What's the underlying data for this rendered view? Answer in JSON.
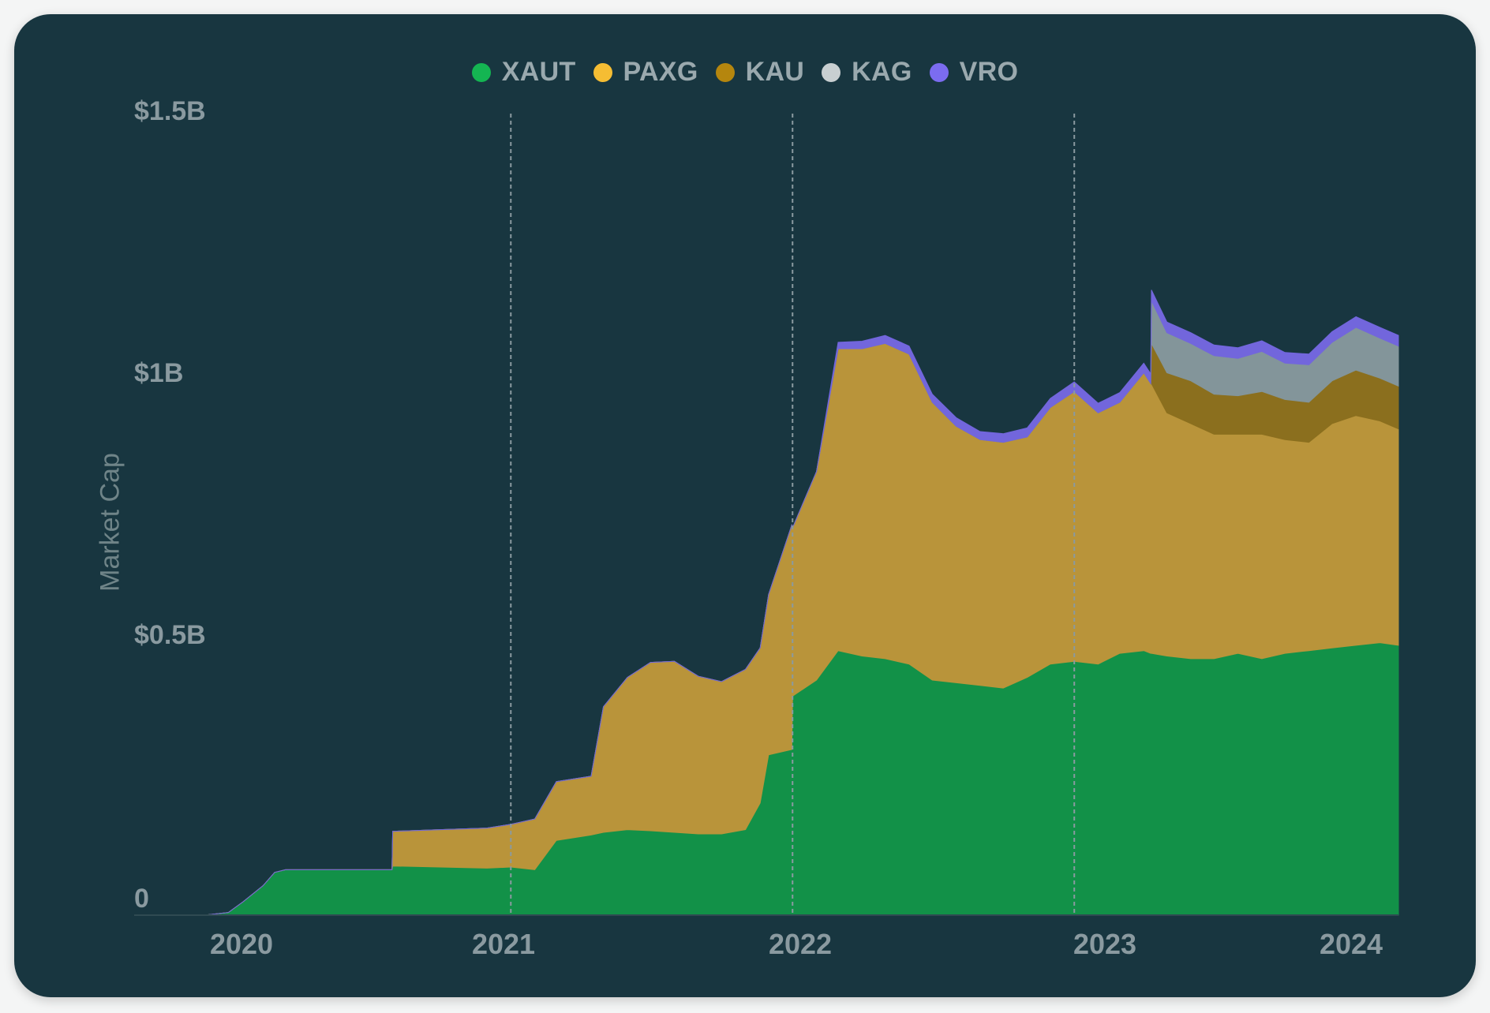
{
  "chart_data": {
    "type": "area",
    "stacked": true,
    "title": "",
    "ylabel": "Market Cap",
    "xlabel": "",
    "ylim": [
      0,
      1500000000
    ],
    "grid": "vertical dashed lines at year boundaries",
    "legend_position": "top-center",
    "y_ticks": [
      {
        "value": 0,
        "label": "0"
      },
      {
        "value": 500000000,
        "label": "$0.5B"
      },
      {
        "value": 1000000000,
        "label": "$1B"
      },
      {
        "value": 1500000000,
        "label": "$1.5B"
      }
    ],
    "x_ticks": [
      "2020",
      "2021",
      "2022",
      "2023",
      "2024"
    ],
    "x": [
      "2019-09-01",
      "2019-12-01",
      "2020-01-01",
      "2020-01-20",
      "2020-02-15",
      "2020-03-01",
      "2020-03-15",
      "2020-07-31",
      "2020-08-01",
      "2020-10-01",
      "2020-12-01",
      "2021-01-01",
      "2021-02-01",
      "2021-03-01",
      "2021-04-15",
      "2021-05-01",
      "2021-06-01",
      "2021-07-01",
      "2021-08-01",
      "2021-09-01",
      "2021-10-01",
      "2021-11-01",
      "2021-11-20",
      "2021-12-01",
      "2021-12-31",
      "2022-01-01",
      "2022-02-01",
      "2022-03-01",
      "2022-04-01",
      "2022-05-01",
      "2022-06-01",
      "2022-07-01",
      "2022-08-01",
      "2022-09-01",
      "2022-10-01",
      "2022-11-01",
      "2022-12-01",
      "2023-01-01",
      "2023-02-01",
      "2023-03-01",
      "2023-04-01",
      "2023-04-10",
      "2023-04-11",
      "2023-05-01",
      "2023-06-01",
      "2023-07-01",
      "2023-08-01",
      "2023-09-01",
      "2023-10-01",
      "2023-11-01",
      "2023-12-01",
      "2024-01-01",
      "2024-02-01",
      "2024-02-25"
    ],
    "series": [
      {
        "name": "XAUT",
        "color": "#129148",
        "values": [
          0,
          0,
          5000000,
          25000000,
          55000000,
          80000000,
          85000000,
          85000000,
          92000000,
          90000000,
          88000000,
          90000000,
          85000000,
          140000000,
          150000000,
          155000000,
          160000000,
          158000000,
          155000000,
          152000000,
          152000000,
          160000000,
          210000000,
          300000000,
          310000000,
          410000000,
          440000000,
          495000000,
          485000000,
          480000000,
          470000000,
          440000000,
          435000000,
          430000000,
          425000000,
          445000000,
          470000000,
          475000000,
          470000000,
          490000000,
          495000000,
          490000000,
          490000000,
          485000000,
          480000000,
          480000000,
          490000000,
          480000000,
          490000000,
          495000000,
          500000000,
          505000000,
          510000000,
          505000000
        ]
      },
      {
        "name": "PAXG",
        "color": "#b9943a",
        "values": [
          0,
          0,
          0,
          0,
          0,
          0,
          0,
          0,
          65000000,
          70000000,
          75000000,
          80000000,
          95000000,
          110000000,
          110000000,
          235000000,
          285000000,
          315000000,
          320000000,
          295000000,
          285000000,
          300000000,
          290000000,
          300000000,
          420000000,
          315000000,
          390000000,
          565000000,
          575000000,
          590000000,
          580000000,
          520000000,
          480000000,
          460000000,
          460000000,
          450000000,
          480000000,
          505000000,
          470000000,
          470000000,
          520000000,
          505000000,
          505000000,
          455000000,
          440000000,
          420000000,
          410000000,
          420000000,
          400000000,
          390000000,
          420000000,
          430000000,
          415000000,
          405000000
        ]
      },
      {
        "name": "KAU",
        "color": "#8b6f1e",
        "values": [
          0,
          0,
          0,
          0,
          0,
          0,
          0,
          0,
          0,
          0,
          0,
          0,
          0,
          0,
          0,
          0,
          0,
          0,
          0,
          0,
          0,
          0,
          0,
          0,
          0,
          0,
          0,
          0,
          0,
          0,
          0,
          0,
          0,
          0,
          0,
          0,
          0,
          0,
          0,
          0,
          0,
          0,
          75000000,
          75000000,
          80000000,
          75000000,
          72000000,
          80000000,
          75000000,
          75000000,
          80000000,
          85000000,
          80000000,
          80000000
        ]
      },
      {
        "name": "KAG",
        "color": "#83959a",
        "values": [
          0,
          0,
          0,
          0,
          0,
          0,
          0,
          0,
          0,
          0,
          0,
          0,
          0,
          0,
          0,
          0,
          0,
          0,
          0,
          0,
          0,
          0,
          0,
          0,
          0,
          0,
          0,
          0,
          0,
          0,
          0,
          0,
          0,
          0,
          0,
          0,
          0,
          0,
          0,
          0,
          0,
          0,
          80000000,
          75000000,
          70000000,
          72000000,
          70000000,
          75000000,
          68000000,
          70000000,
          72000000,
          80000000,
          75000000,
          75000000
        ]
      },
      {
        "name": "VRO",
        "color": "#7266dc",
        "values": [
          0,
          0,
          0,
          0,
          0,
          0,
          0,
          0,
          0,
          0,
          0,
          0,
          0,
          0,
          0,
          0,
          0,
          0,
          0,
          0,
          0,
          0,
          0,
          0,
          0,
          0,
          0,
          12000000,
          14000000,
          15000000,
          15000000,
          15000000,
          16000000,
          15000000,
          16000000,
          17000000,
          17000000,
          18000000,
          18000000,
          18000000,
          18000000,
          18000000,
          20000000,
          20000000,
          20000000,
          20000000,
          20000000,
          20000000,
          20000000,
          20000000,
          20000000,
          20000000,
          20000000,
          20000000
        ]
      }
    ]
  }
}
